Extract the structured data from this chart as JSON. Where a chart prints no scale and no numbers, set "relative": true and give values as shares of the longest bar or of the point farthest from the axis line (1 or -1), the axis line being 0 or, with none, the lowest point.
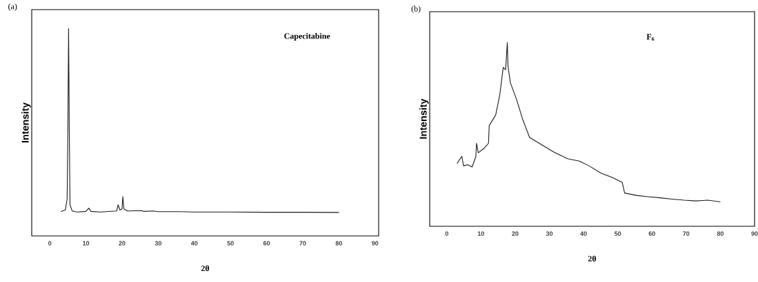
{
  "chart_data": [
    {
      "type": "line",
      "title": "(a)",
      "xlabel": "2θ",
      "ylabel": "Intensity",
      "annotations": [
        "Capecitabine"
      ],
      "relative": true,
      "xlim": [
        -5,
        91
      ],
      "xticks": [
        0,
        10,
        20,
        30,
        40,
        50,
        60,
        70,
        80,
        90
      ],
      "grid": false,
      "marker": "none",
      "line_style": "solid",
      "series": [
        {
          "color": "#1a1a1a",
          "x": [
            3.1,
            4.3,
            4.8,
            5.0,
            5.2,
            5.4,
            5.6,
            6.2,
            7.5,
            10,
            10.8,
            11.4,
            14,
            18.5,
            18.9,
            19.4,
            20,
            20.2,
            20.5,
            21.5,
            25.5,
            26,
            28.5,
            30,
            36,
            40,
            50,
            60,
            70,
            80
          ],
          "values": [
            0.118,
            0.125,
            0.18,
            0.5,
            1.0,
            0.5,
            0.15,
            0.12,
            0.115,
            0.118,
            0.134,
            0.118,
            0.115,
            0.12,
            0.15,
            0.125,
            0.13,
            0.19,
            0.13,
            0.12,
            0.122,
            0.118,
            0.12,
            0.117,
            0.117,
            0.115,
            0.115,
            0.114,
            0.114,
            0.113
          ]
        }
      ]
    },
    {
      "type": "line",
      "title": "(b)",
      "xlabel": "2θ",
      "ylabel": "Intensity",
      "annotations": [
        "F$_{6}$"
      ],
      "relative": true,
      "xlim": [
        -5,
        90
      ],
      "xticks": [
        0,
        10,
        20,
        30,
        40,
        50,
        60,
        70,
        80,
        90
      ],
      "grid": false,
      "marker": "none",
      "line_style": "solid",
      "series": [
        {
          "color": "#1a1a1a",
          "x": [
            3.0,
            4.4,
            4.9,
            6.1,
            7.4,
            8.5,
            8.7,
            9.2,
            11.0,
            12.2,
            12.4,
            14.3,
            15.5,
            16.5,
            17.2,
            17.7,
            17.9,
            18.6,
            20.4,
            22.1,
            24.2,
            27.0,
            31.1,
            35.3,
            38.8,
            41.6,
            45.0,
            48.5,
            51.3,
            52.0,
            55.5,
            58.9,
            62.4,
            65.9,
            69.4,
            72.8,
            76.3,
            80.0
          ],
          "values": [
            0.342,
            0.381,
            0.329,
            0.335,
            0.323,
            0.381,
            0.452,
            0.4,
            0.426,
            0.452,
            0.548,
            0.606,
            0.716,
            0.865,
            0.852,
            1.0,
            0.871,
            0.781,
            0.69,
            0.587,
            0.484,
            0.452,
            0.406,
            0.368,
            0.355,
            0.329,
            0.29,
            0.265,
            0.239,
            0.181,
            0.168,
            0.161,
            0.155,
            0.148,
            0.142,
            0.138,
            0.142,
            0.133
          ]
        }
      ]
    }
  ]
}
